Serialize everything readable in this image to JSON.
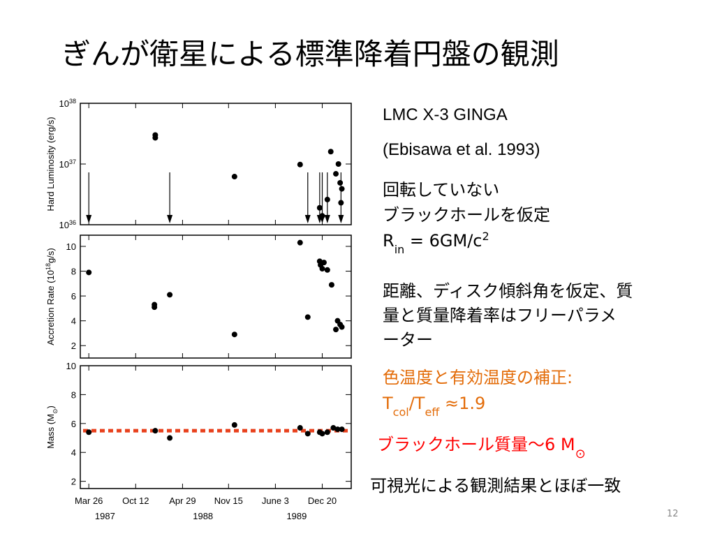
{
  "title": "ぎんが衛星による標準降着円盤の観測",
  "figure": {
    "type": "scatter",
    "xlim": [
      1987.13,
      1990.31
    ],
    "xticks": [
      {
        "value": 1987.23,
        "label": "Mar 26"
      },
      {
        "value": 1987.78,
        "label": "Oct 12"
      },
      {
        "value": 1988.33,
        "label": "Apr 29"
      },
      {
        "value": 1988.87,
        "label": "Nov 15"
      },
      {
        "value": 1989.42,
        "label": "June 3"
      },
      {
        "value": 1989.97,
        "label": "Dec 20"
      }
    ],
    "year_labels": [
      {
        "value": 1987.42,
        "label": "1987"
      },
      {
        "value": 1988.57,
        "label": "1988"
      },
      {
        "value": 1989.67,
        "label": "1989"
      }
    ],
    "panels": [
      {
        "ylabel": "Hard Luminosity (erg/s)",
        "log": true,
        "ylim": [
          1e+36,
          1e+38
        ],
        "yticks": [
          {
            "value": 1e+36,
            "label": "10",
            "exponent": "36"
          },
          {
            "value": 1e+37,
            "label": "10",
            "exponent": "37"
          },
          {
            "value": 1e+38,
            "label": "10",
            "exponent": "38"
          }
        ],
        "color": "#000000",
        "x": [
          1988.01,
          1988.01,
          1988.94,
          1989.71,
          1990.07,
          1990.13,
          1990.16,
          1990.18,
          1990.2,
          1990.19,
          1989.94,
          1989.97,
          1990.03
        ],
        "values": [
          3e+37,
          2.7e+37,
          6.2e+36,
          9.8e+36,
          1.6e+37,
          6.9e+36,
          1e+37,
          4.9e+36,
          3.9e+36,
          2.3e+36,
          1.9e+36,
          1.4e+36,
          2.6e+36
        ],
        "upper_limits_x": [
          1987.23,
          1988.18,
          1989.8,
          1989.94,
          1989.97,
          1990.03,
          1990.19
        ]
      },
      {
        "ylabel": {
          "text": "Accretion Rate (10",
          "sup": "18",
          "after": "g/s)"
        },
        "ylim": [
          1,
          10.9
        ],
        "yticks": [
          2,
          4,
          6,
          8,
          10
        ],
        "color": "#000000",
        "x": [
          1987.23,
          1988.0,
          1988.0,
          1988.18,
          1988.94,
          1989.71,
          1989.8,
          1989.94,
          1989.95,
          1989.97,
          1989.99,
          1990.03,
          1990.08,
          1990.13,
          1990.15,
          1990.18,
          1990.2
        ],
        "values": [
          7.9,
          5.3,
          5.1,
          6.1,
          2.9,
          10.3,
          4.3,
          8.8,
          8.5,
          8.2,
          8.7,
          8.1,
          6.9,
          3.3,
          4.0,
          3.7,
          3.5
        ]
      },
      {
        "ylabel": {
          "text": "Mass (M",
          "sub": "⊙",
          "after": ")"
        },
        "ylim": [
          1.5,
          10
        ],
        "yticks": [
          2,
          4,
          6,
          8,
          10
        ],
        "color": "#000000",
        "x": [
          1987.23,
          1988.01,
          1988.18,
          1988.94,
          1989.71,
          1989.8,
          1989.94,
          1989.97,
          1990.03,
          1990.1,
          1990.15,
          1990.2
        ],
        "values": [
          5.4,
          5.5,
          5.0,
          5.9,
          5.7,
          5.3,
          5.4,
          5.3,
          5.4,
          5.7,
          5.6,
          5.6
        ],
        "reference_line": 5.5,
        "reference_color": "#e8401c"
      }
    ]
  },
  "notes": {
    "source": [
      "LMC X-3 GINGA",
      "(Ebisawa et al. 1993)"
    ],
    "assumption": [
      "回転していない",
      "ブラックホールを仮定"
    ],
    "radius": {
      "symbol": "R",
      "sub": "in",
      "rest": " = 6GM/c",
      "sup": "2"
    },
    "free_params": [
      "距離、ディスク傾斜角を仮定、質",
      "量と質量降着率はフリーパラメ",
      "ーター"
    ],
    "correction": {
      "text": "色温度と有効温度の補正:",
      "t1": "T",
      "sub1": "col",
      "t2": "/T",
      "sub2": "eff",
      "rest": " ≈1.9",
      "color": "#e36c09"
    },
    "mass": {
      "text": "ブラックホール質量～6 M",
      "sub": "⊙",
      "color": "#ff0000"
    },
    "conclusion": "可視光による観測結果とほぼ一致"
  },
  "page_number": "12"
}
